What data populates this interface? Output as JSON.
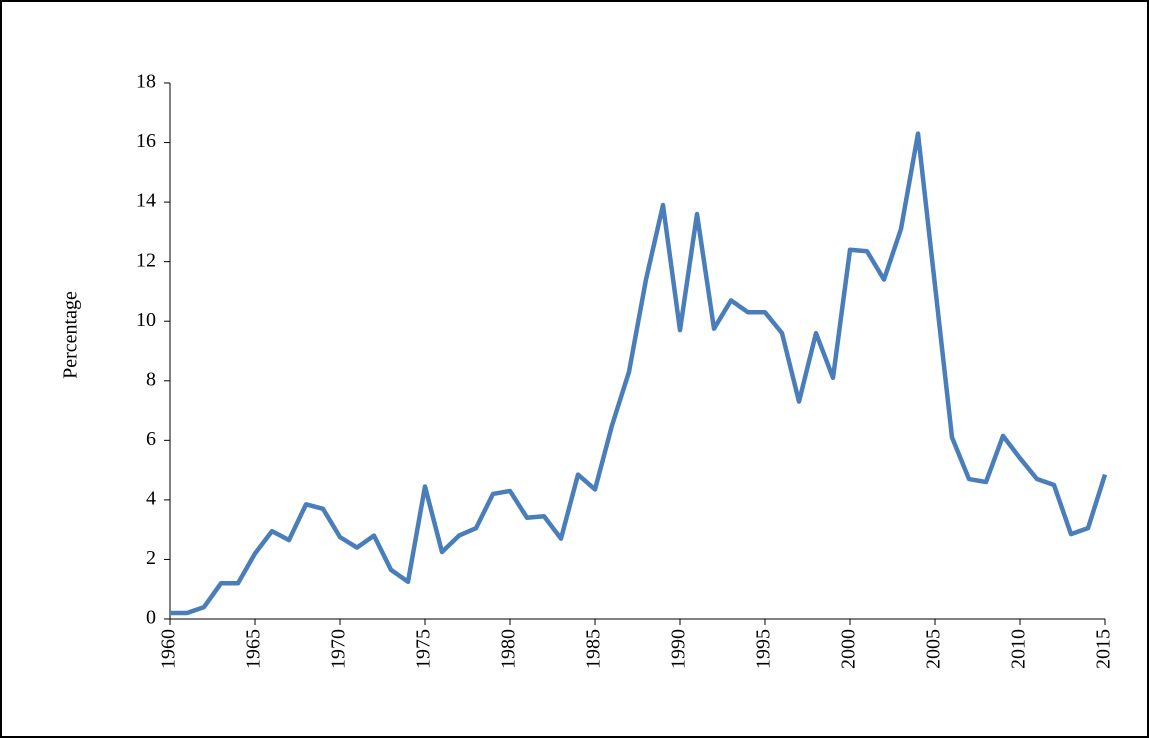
{
  "chart_data": {
    "type": "line",
    "y_label": "Percentage",
    "x": [
      1960,
      1961,
      1962,
      1963,
      1964,
      1965,
      1966,
      1967,
      1968,
      1969,
      1970,
      1971,
      1972,
      1973,
      1974,
      1975,
      1976,
      1977,
      1978,
      1979,
      1980,
      1981,
      1982,
      1983,
      1984,
      1985,
      1986,
      1987,
      1988,
      1989,
      1990,
      1991,
      1992,
      1993,
      1994,
      1995,
      1996,
      1997,
      1998,
      1999,
      2000,
      2001,
      2002,
      2003,
      2004,
      2005,
      2006,
      2007,
      2008,
      2009,
      2010,
      2011,
      2012,
      2013,
      2014,
      2015
    ],
    "values": [
      0.2,
      0.2,
      0.4,
      1.2,
      1.2,
      2.2,
      2.95,
      2.65,
      3.85,
      3.7,
      2.75,
      2.4,
      2.8,
      1.65,
      1.25,
      4.45,
      2.25,
      2.8,
      3.05,
      4.2,
      4.3,
      3.4,
      3.45,
      2.7,
      4.85,
      4.35,
      6.5,
      8.3,
      11.4,
      13.9,
      9.7,
      13.6,
      9.75,
      10.7,
      10.3,
      10.3,
      9.6,
      7.3,
      9.6,
      8.1,
      12.4,
      12.35,
      11.4,
      13.1,
      16.3,
      11.2,
      6.1,
      4.7,
      4.6,
      6.15,
      5.4,
      4.7,
      4.5,
      2.85,
      3.05,
      4.85
    ],
    "color": "#4a7ebb",
    "xlim": [
      1960,
      2015
    ],
    "xticks": [
      1960,
      1965,
      1970,
      1975,
      1980,
      1985,
      1990,
      1995,
      2000,
      2005,
      2010,
      2015
    ],
    "ylim": [
      0,
      18
    ],
    "yticks": [
      0,
      2,
      4,
      6,
      8,
      10,
      12,
      14,
      16,
      18
    ],
    "grid": false
  }
}
